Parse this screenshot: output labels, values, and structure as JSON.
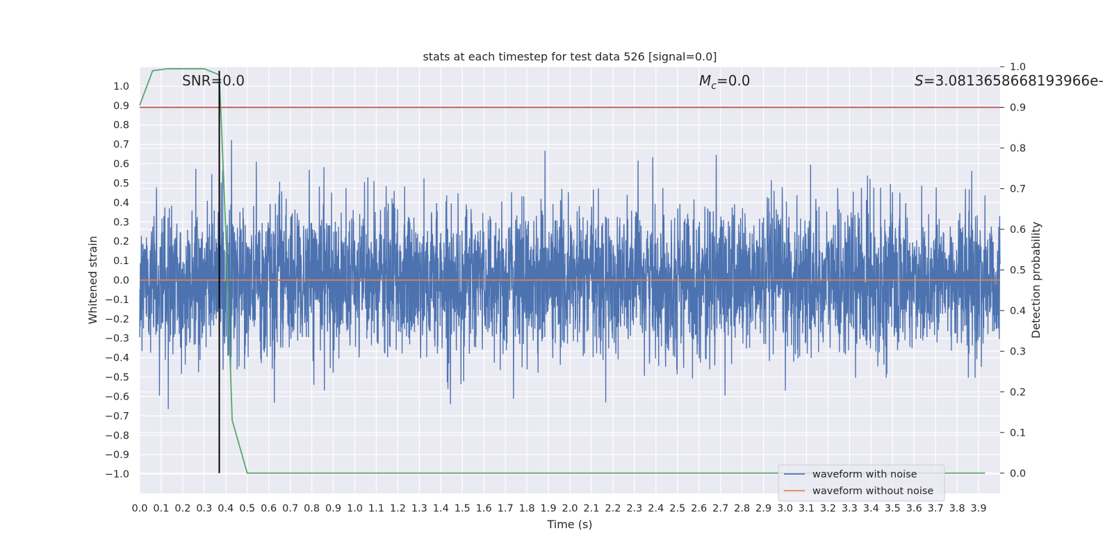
{
  "chart_data": {
    "type": "line",
    "title": "stats at each timestep for test data 526 [signal=0.0]",
    "xlabel": "Time (s)",
    "ylabel": "Whitened strain",
    "ylabel_right": "Detection probability",
    "xlim": [
      0.0,
      4.0
    ],
    "ylim": [
      -1.1,
      1.1
    ],
    "ylim_right": [
      -0.05,
      1.0
    ],
    "xticks": [
      "0.0",
      "0.1",
      "0.2",
      "0.3",
      "0.4",
      "0.5",
      "0.6",
      "0.7",
      "0.8",
      "0.9",
      "1.0",
      "1.1",
      "1.2",
      "1.3",
      "1.4",
      "1.5",
      "1.6",
      "1.7",
      "1.8",
      "1.9",
      "2.0",
      "2.1",
      "2.2",
      "2.3",
      "2.4",
      "2.5",
      "2.6",
      "2.7",
      "2.8",
      "2.9",
      "3.0",
      "3.1",
      "3.2",
      "3.3",
      "3.4",
      "3.5",
      "3.6",
      "3.7",
      "3.8",
      "3.9"
    ],
    "yticks": [
      "1.0",
      "0.9",
      "0.8",
      "0.7",
      "0.6",
      "0.5",
      "0.4",
      "0.3",
      "0.2",
      "0.1",
      "0.0",
      "−0.1",
      "−0.2",
      "−0.3",
      "−0.4",
      "−0.5",
      "−0.6",
      "−0.7",
      "−0.8",
      "−0.9",
      "−1.0"
    ],
    "yticks_right": [
      "1.0",
      "0.9",
      "0.8",
      "0.7",
      "0.6",
      "0.5",
      "0.4",
      "0.3",
      "0.2",
      "0.1",
      "0.0"
    ],
    "grid": true,
    "legend": "lower-right",
    "annotations": {
      "snr": "SNR=0.0",
      "mc_symbol": "M",
      "mc_sub": "c",
      "mc_value": "=0.0",
      "s_symbol": "S",
      "s_value": "=3.0813658668193966e-"
    },
    "series": [
      {
        "name": "waveform with noise",
        "color": "#4c72b0",
        "axis": "left",
        "kind": "noise",
        "envelope": 0.45,
        "peak_max": 0.93,
        "peak_min": -1.0
      },
      {
        "name": "waveform without noise",
        "color": "#dd8452",
        "axis": "left",
        "x": [
          0.0,
          4.0
        ],
        "y": [
          0.0,
          0.0
        ]
      },
      {
        "color": "#55a868",
        "axis": "right",
        "x": [
          0.0,
          0.06,
          0.13,
          0.2,
          0.3,
          0.37,
          0.4,
          0.43,
          0.5,
          0.56,
          3.93
        ],
        "y": [
          0.905,
          0.99,
          0.995,
          0.995,
          0.995,
          0.98,
          0.6,
          0.13,
          0.0,
          0.0,
          0.0
        ]
      },
      {
        "color": "#c44e52",
        "axis": "right",
        "x": [
          0.0,
          4.0
        ],
        "y": [
          0.9,
          0.9
        ]
      }
    ],
    "vline": {
      "x": 0.37,
      "ymin_right": 0.0,
      "ymax_right": 0.99,
      "color": "#000000"
    }
  }
}
